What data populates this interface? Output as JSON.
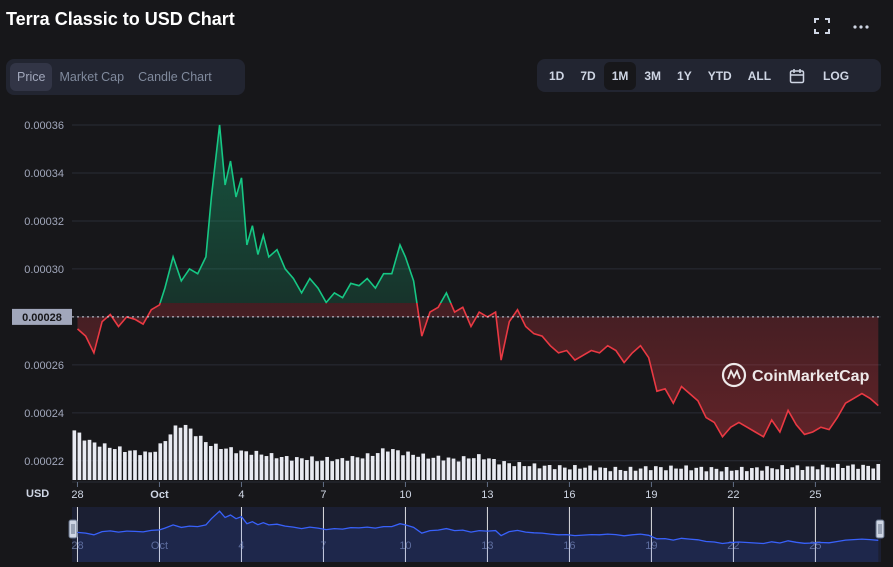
{
  "title": "Terra Classic to USD Chart",
  "icons": {
    "fullscreen": "fullscreen-icon",
    "more": "more-icon",
    "calendar": "calendar-icon"
  },
  "view_tabs": [
    {
      "label": "Price",
      "active": true
    },
    {
      "label": "Market Cap",
      "active": false
    },
    {
      "label": "Candle Chart",
      "active": false
    }
  ],
  "range_tabs": [
    {
      "label": "1D",
      "selected": false
    },
    {
      "label": "7D",
      "selected": false
    },
    {
      "label": "1M",
      "selected": true
    },
    {
      "label": "3M",
      "selected": false
    },
    {
      "label": "1Y",
      "selected": false
    },
    {
      "label": "YTD",
      "selected": false
    },
    {
      "label": "ALL",
      "selected": false
    }
  ],
  "log_label": "LOG",
  "currency_label": "USD",
  "watermark": "CoinMarketCap",
  "colors": {
    "up": "#16c784",
    "down": "#ea3943",
    "navigator": "#3861fb",
    "background": "#17171a"
  },
  "chart_data": {
    "type": "area",
    "baseline": 0.00028,
    "baseline_label": "0.00028",
    "ylim": [
      0.000212,
      0.000365
    ],
    "yticks": [
      "0.00036",
      "0.00034",
      "0.00032",
      "0.00030",
      "0.00028",
      "0.00026",
      "0.00024",
      "0.00022"
    ],
    "xlim": [
      -0.2,
      29.4
    ],
    "xticks": [
      {
        "label": "28",
        "x": 0
      },
      {
        "label": "Oct",
        "x": 3
      },
      {
        "label": "4",
        "x": 6
      },
      {
        "label": "7",
        "x": 9
      },
      {
        "label": "10",
        "x": 12
      },
      {
        "label": "13",
        "x": 15
      },
      {
        "label": "16",
        "x": 18
      },
      {
        "label": "19",
        "x": 21
      },
      {
        "label": "22",
        "x": 24
      },
      {
        "label": "25",
        "x": 27
      }
    ],
    "x": [
      0,
      0.3,
      0.6,
      0.9,
      1.2,
      1.5,
      1.8,
      2.1,
      2.4,
      2.7,
      3.0,
      3.2,
      3.5,
      3.8,
      4.1,
      4.4,
      4.7,
      4.9,
      5.0,
      5.2,
      5.4,
      5.6,
      5.8,
      6.0,
      6.2,
      6.4,
      6.6,
      6.8,
      7.0,
      7.3,
      7.6,
      7.9,
      8.2,
      8.5,
      8.8,
      9.1,
      9.4,
      9.7,
      10.0,
      10.3,
      10.6,
      10.9,
      11.2,
      11.5,
      11.8,
      12.0,
      12.3,
      12.6,
      12.9,
      13.2,
      13.5,
      13.8,
      14.1,
      14.4,
      14.7,
      15.0,
      15.3,
      15.5,
      15.8,
      16.1,
      16.4,
      16.7,
      17.0,
      17.3,
      17.6,
      17.9,
      18.2,
      18.5,
      18.8,
      19.1,
      19.4,
      19.7,
      20.0,
      20.3,
      20.6,
      20.9,
      21.2,
      21.5,
      21.8,
      22.1,
      22.4,
      22.7,
      23.0,
      23.3,
      23.6,
      23.9,
      24.2,
      24.5,
      24.8,
      25.1,
      25.4,
      25.7,
      26.0,
      26.3,
      26.6,
      26.9,
      27.2,
      27.5,
      27.8,
      28.1,
      28.4,
      28.7,
      29.0,
      29.3
    ],
    "y": [
      0.000275,
      0.000272,
      0.000265,
      0.000278,
      0.000281,
      0.000276,
      0.00028,
      0.000279,
      0.000277,
      0.000283,
      0.000285,
      0.000292,
      0.000305,
      0.000295,
      0.0003,
      0.000298,
      0.000305,
      0.00033,
      0.00034,
      0.00036,
      0.000335,
      0.000345,
      0.00033,
      0.000338,
      0.00031,
      0.000318,
      0.000306,
      0.000314,
      0.000305,
      0.000308,
      0.0003,
      0.000296,
      0.00029,
      0.000296,
      0.000292,
      0.000286,
      0.00029,
      0.000288,
      0.000294,
      0.000293,
      0.000296,
      0.000292,
      0.000298,
      0.000298,
      0.00031,
      0.000305,
      0.000295,
      0.000272,
      0.000282,
      0.000284,
      0.00029,
      0.000282,
      0.000284,
      0.000276,
      0.000282,
      0.00028,
      0.000282,
      0.000262,
      0.000278,
      0.000283,
      0.000276,
      0.000273,
      0.000272,
      0.000268,
      0.000265,
      0.000266,
      0.000262,
      0.000264,
      0.000266,
      0.000265,
      0.000268,
      0.000266,
      0.000261,
      0.000265,
      0.000268,
      0.000263,
      0.000249,
      0.00025,
      0.000244,
      0.000251,
      0.000248,
      0.000245,
      0.000238,
      0.000236,
      0.00023,
      0.000234,
      0.000236,
      0.000234,
      0.000232,
      0.00023,
      0.000237,
      0.000232,
      0.000241,
      0.000235,
      0.000231,
      0.000232,
      0.000234,
      0.000233,
      0.000238,
      0.000244,
      0.000246,
      0.000248,
      0.000246,
      0.000243
    ],
    "volume": [
      0.8,
      0.7,
      0.62,
      0.58,
      0.55,
      0.52,
      0.5,
      0.47,
      0.45,
      0.43,
      0.45,
      0.55,
      0.7,
      0.85,
      0.9,
      0.8,
      0.7,
      0.6,
      0.55,
      0.52,
      0.5,
      0.46,
      0.45,
      0.44,
      0.42,
      0.4,
      0.38,
      0.36,
      0.35,
      0.34,
      0.36,
      0.32,
      0.33,
      0.34,
      0.32,
      0.35,
      0.36,
      0.38,
      0.4,
      0.45,
      0.5,
      0.48,
      0.44,
      0.42,
      0.4,
      0.38,
      0.36,
      0.36,
      0.34,
      0.33,
      0.35,
      0.37,
      0.38,
      0.35,
      0.3,
      0.28,
      0.26,
      0.25,
      0.24,
      0.23,
      0.22,
      0.22,
      0.21,
      0.2,
      0.2,
      0.21,
      0.2,
      0.19,
      0.18,
      0.18,
      0.17,
      0.17,
      0.18,
      0.19,
      0.2,
      0.2,
      0.19,
      0.2,
      0.2,
      0.19,
      0.19,
      0.18,
      0.18,
      0.17,
      0.17,
      0.17,
      0.18,
      0.18,
      0.19,
      0.19,
      0.2,
      0.2,
      0.21,
      0.2,
      0.2,
      0.21,
      0.21,
      0.22,
      0.22,
      0.23,
      0.22,
      0.22,
      0.22,
      0.22
    ]
  }
}
